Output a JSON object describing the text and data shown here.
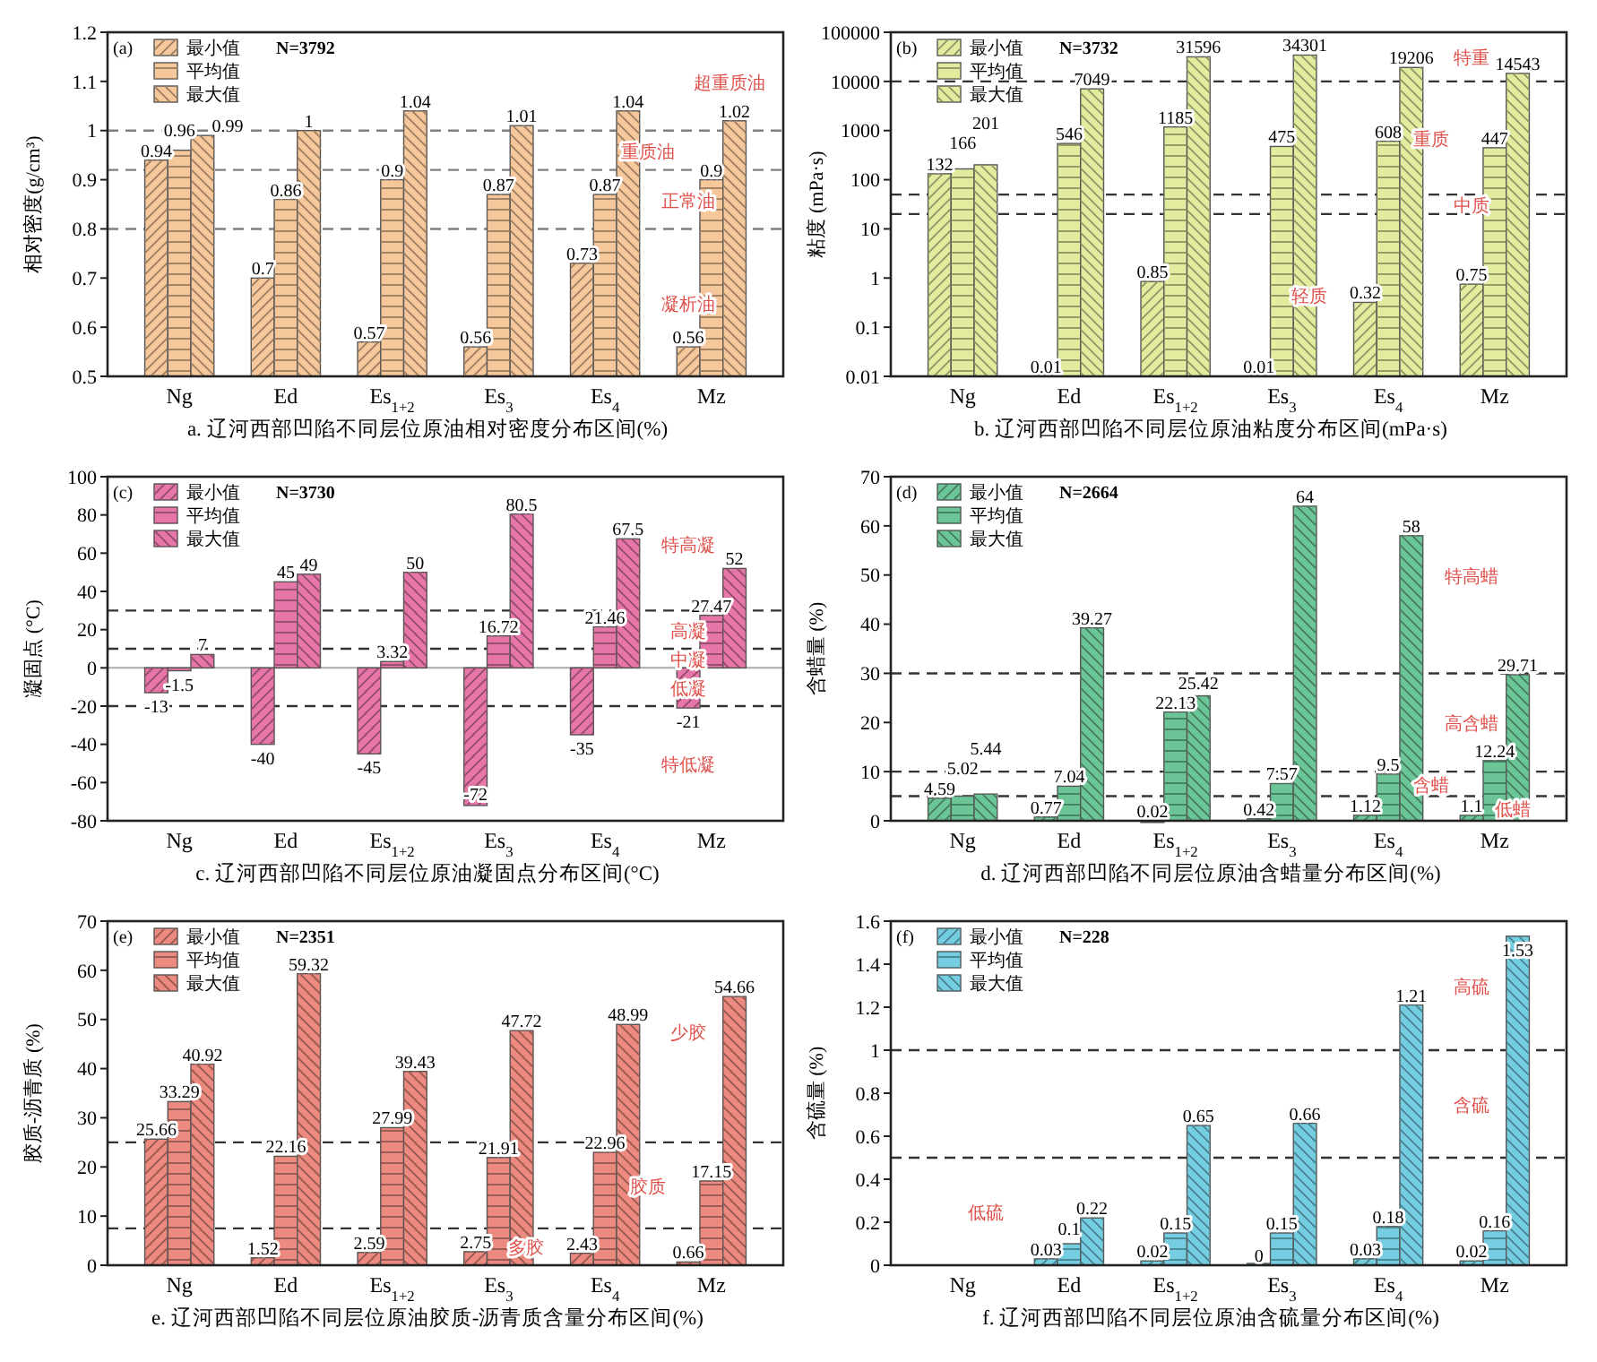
{
  "chart_data": [
    {
      "type": "bar",
      "title": "a. 辽河西部凹陷不同层位原油相对密度分布区间(%)",
      "ylabel": "相对密度(g/cm³)",
      "categories": [
        "Ng",
        "Ed",
        "Es$_{1+2}$",
        "Es$_{3}$",
        "Es$_{4}$",
        "Mz"
      ],
      "ylim": [
        0.5,
        1.2
      ],
      "yticks": [
        0.5,
        0.6,
        0.7,
        0.8,
        0.9,
        1,
        1.1,
        1.2
      ],
      "legend": "top left",
      "data_labels": true,
      "series": [
        {
          "name": "最小值",
          "color": "#f6c79b",
          "values": [
            0.94,
            0.7,
            0.57,
            0.56,
            0.73,
            0.56
          ]
        },
        {
          "name": "平均值",
          "color": "#f6c79b",
          "values": [
            0.96,
            0.86,
            0.9,
            0.87,
            0.87,
            0.9
          ]
        },
        {
          "name": "最大值",
          "color": "#f6c79b",
          "values": [
            0.99,
            1,
            1.04,
            1.01,
            1.04,
            1.02
          ]
        }
      ],
      "ref_lines": [
        {
          "axis": "y",
          "value": 1,
          "color": "#808080",
          "line_style": "dashed"
        },
        {
          "axis": "y",
          "value": 0.92,
          "color": "#808080",
          "line_style": "dashed"
        },
        {
          "axis": "y",
          "value": 0.8,
          "color": "#808080",
          "line_style": "dashed"
        }
      ],
      "annotations": [
        "(a)",
        "N=3792",
        "超重质油",
        "重质油",
        "正常油",
        "凝析油"
      ]
    },
    {
      "type": "bar",
      "title": "b. 辽河西部凹陷不同层位原油粘度分布区间(mPa·s)",
      "ylabel": "粘度 (mPa·s)",
      "categories": [
        "Ng",
        "Ed",
        "Es$_{1+2}$",
        "Es$_{3}$",
        "Es$_{4}$",
        "Mz"
      ],
      "log": true,
      "ylim": [
        0.01,
        100000
      ],
      "yticks": [
        0.01,
        0.1,
        1,
        10,
        100,
        1000,
        10000,
        100000
      ],
      "legend": "top left",
      "data_labels": true,
      "series": [
        {
          "name": "最小值",
          "color": "#e3ec9e",
          "values": [
            132,
            0.01,
            0.85,
            0.01,
            0.32,
            0.75
          ]
        },
        {
          "name": "平均值",
          "color": "#e3ec9e",
          "values": [
            166,
            546,
            1185,
            475,
            608,
            447
          ]
        },
        {
          "name": "最大值",
          "color": "#e3ec9e",
          "values": [
            201,
            7049,
            31596,
            34301,
            19206,
            14543
          ]
        }
      ],
      "ref_lines": [
        {
          "axis": "y",
          "value": 10000,
          "color": "#333333",
          "line_style": "dashed"
        },
        {
          "axis": "y",
          "value": 50,
          "color": "#333333",
          "line_style": "dashed"
        },
        {
          "axis": "y",
          "value": 20,
          "color": "#333333",
          "line_style": "dashed"
        }
      ],
      "annotations": [
        "(b)",
        "N=3732",
        "特重",
        "重质",
        "中质",
        "轻质"
      ]
    },
    {
      "type": "bar",
      "title": "c. 辽河西部凹陷不同层位原油凝固点分布区间(°C)",
      "ylabel": "凝固点 (°C)",
      "categories": [
        "Ng",
        "Ed",
        "Es$_{1+2}$",
        "Es$_{3}$",
        "Es$_{4}$",
        "Mz"
      ],
      "ylim": [
        -80,
        100
      ],
      "yticks": [
        -80,
        -60,
        -40,
        -20,
        0,
        20,
        40,
        60,
        80,
        100
      ],
      "legend": "top left",
      "data_labels": true,
      "series": [
        {
          "name": "最小值",
          "color": "#e776a8",
          "values": [
            -13,
            -40,
            -45,
            -72,
            -35,
            -21
          ]
        },
        {
          "name": "平均值",
          "color": "#e776a8",
          "values": [
            -1.5,
            45,
            3.32,
            16.72,
            21.46,
            27.47
          ]
        },
        {
          "name": "最大值",
          "color": "#e776a8",
          "values": [
            7,
            49,
            50,
            80.5,
            67.5,
            52
          ]
        }
      ],
      "ref_lines": [
        {
          "axis": "y",
          "value": 30,
          "color": "#333333",
          "line_style": "dashed"
        },
        {
          "axis": "y",
          "value": 10,
          "color": "#333333",
          "line_style": "dashed"
        },
        {
          "axis": "y",
          "value": -20,
          "color": "#333333",
          "line_style": "dashed"
        }
      ],
      "annotations": [
        "(c)",
        "N=3730",
        "特高凝",
        "高凝",
        "中凝",
        "低凝",
        "特低凝"
      ]
    },
    {
      "type": "bar",
      "title": "d. 辽河西部凹陷不同层位原油含蜡量分布区间(%)",
      "ylabel": "含蜡量 (%)",
      "categories": [
        "Ng",
        "Ed",
        "Es$_{1+2}$",
        "Es$_{3}$",
        "Es$_{4}$",
        "Mz"
      ],
      "ylim": [
        0,
        70
      ],
      "yticks": [
        0,
        10,
        20,
        30,
        40,
        50,
        60,
        70
      ],
      "legend": "top left",
      "data_labels": true,
      "series": [
        {
          "name": "最小值",
          "color": "#6cc596",
          "values": [
            4.59,
            0.77,
            0.02,
            0.42,
            1.12,
            1.1
          ]
        },
        {
          "name": "平均值",
          "color": "#6cc596",
          "values": [
            5.02,
            7.04,
            22.13,
            7.57,
            9.5,
            12.24
          ]
        },
        {
          "name": "最大值",
          "color": "#6cc596",
          "values": [
            5.44,
            39.27,
            25.42,
            64,
            58,
            29.71
          ]
        }
      ],
      "ref_lines": [
        {
          "axis": "y",
          "value": 30,
          "color": "#333333",
          "line_style": "dashed"
        },
        {
          "axis": "y",
          "value": 10,
          "color": "#333333",
          "line_style": "dashed"
        },
        {
          "axis": "y",
          "value": 5,
          "color": "#333333",
          "line_style": "dashed"
        }
      ],
      "annotations": [
        "(d)",
        "N=2664",
        "特高蜡",
        "高含蜡",
        "含蜡",
        "低蜡"
      ]
    },
    {
      "type": "bar",
      "title": "e. 辽河西部凹陷不同层位原油胶质-沥青质含量分布区间(%)",
      "ylabel": "胶质-沥青质 (%)",
      "categories": [
        "Ng",
        "Ed",
        "Es$_{1+2}$",
        "Es$_{3}$",
        "Es$_{4}$",
        "Mz"
      ],
      "ylim": [
        0,
        70
      ],
      "yticks": [
        0,
        10,
        20,
        30,
        40,
        50,
        60,
        70
      ],
      "legend": "top left",
      "data_labels": true,
      "series": [
        {
          "name": "最小值",
          "color": "#ec8a7f",
          "values": [
            25.66,
            1.52,
            2.59,
            2.75,
            2.43,
            0.66
          ]
        },
        {
          "name": "平均值",
          "color": "#ec8a7f",
          "values": [
            33.29,
            22.16,
            27.99,
            21.91,
            22.96,
            17.15
          ]
        },
        {
          "name": "最大值",
          "color": "#ec8a7f",
          "values": [
            40.92,
            59.32,
            39.43,
            47.72,
            48.99,
            54.66
          ]
        }
      ],
      "ref_lines": [
        {
          "axis": "y",
          "value": 25,
          "color": "#333333",
          "line_style": "dashed"
        },
        {
          "axis": "y",
          "value": 7.5,
          "color": "#333333",
          "line_style": "dashed"
        }
      ],
      "annotations": [
        "(e)",
        "N=2351",
        "少胶",
        "胶质",
        "多胶"
      ]
    },
    {
      "type": "bar",
      "title": "f. 辽河西部凹陷不同层位原油含硫量分布区间(%)",
      "ylabel": "含硫量 (%)",
      "categories": [
        "Ng",
        "Ed",
        "Es$_{1+2}$",
        "Es$_{3}$",
        "Es$_{4}$",
        "Mz"
      ],
      "ylim": [
        0,
        1.6
      ],
      "yticks": [
        0,
        0.2,
        0.4,
        0.6,
        0.8,
        1,
        1.2,
        1.4,
        1.6
      ],
      "legend": "top left",
      "data_labels": true,
      "series": [
        {
          "name": "最小值",
          "color": "#74cde0",
          "values": [
            null,
            0.03,
            0.02,
            0,
            0.03,
            0.02
          ]
        },
        {
          "name": "平均值",
          "color": "#74cde0",
          "values": [
            null,
            0.1,
            0.15,
            0.15,
            0.18,
            0.16
          ]
        },
        {
          "name": "最大值",
          "color": "#74cde0",
          "values": [
            null,
            0.22,
            0.65,
            0.66,
            1.21,
            1.53
          ]
        }
      ],
      "ref_lines": [
        {
          "axis": "y",
          "value": 1,
          "color": "#333333",
          "line_style": "dashed"
        },
        {
          "axis": "y",
          "value": 0.5,
          "color": "#333333",
          "line_style": "dashed"
        }
      ],
      "annotations": [
        "(f)",
        "N=228",
        "高硫",
        "含硫",
        "低硫"
      ]
    }
  ]
}
